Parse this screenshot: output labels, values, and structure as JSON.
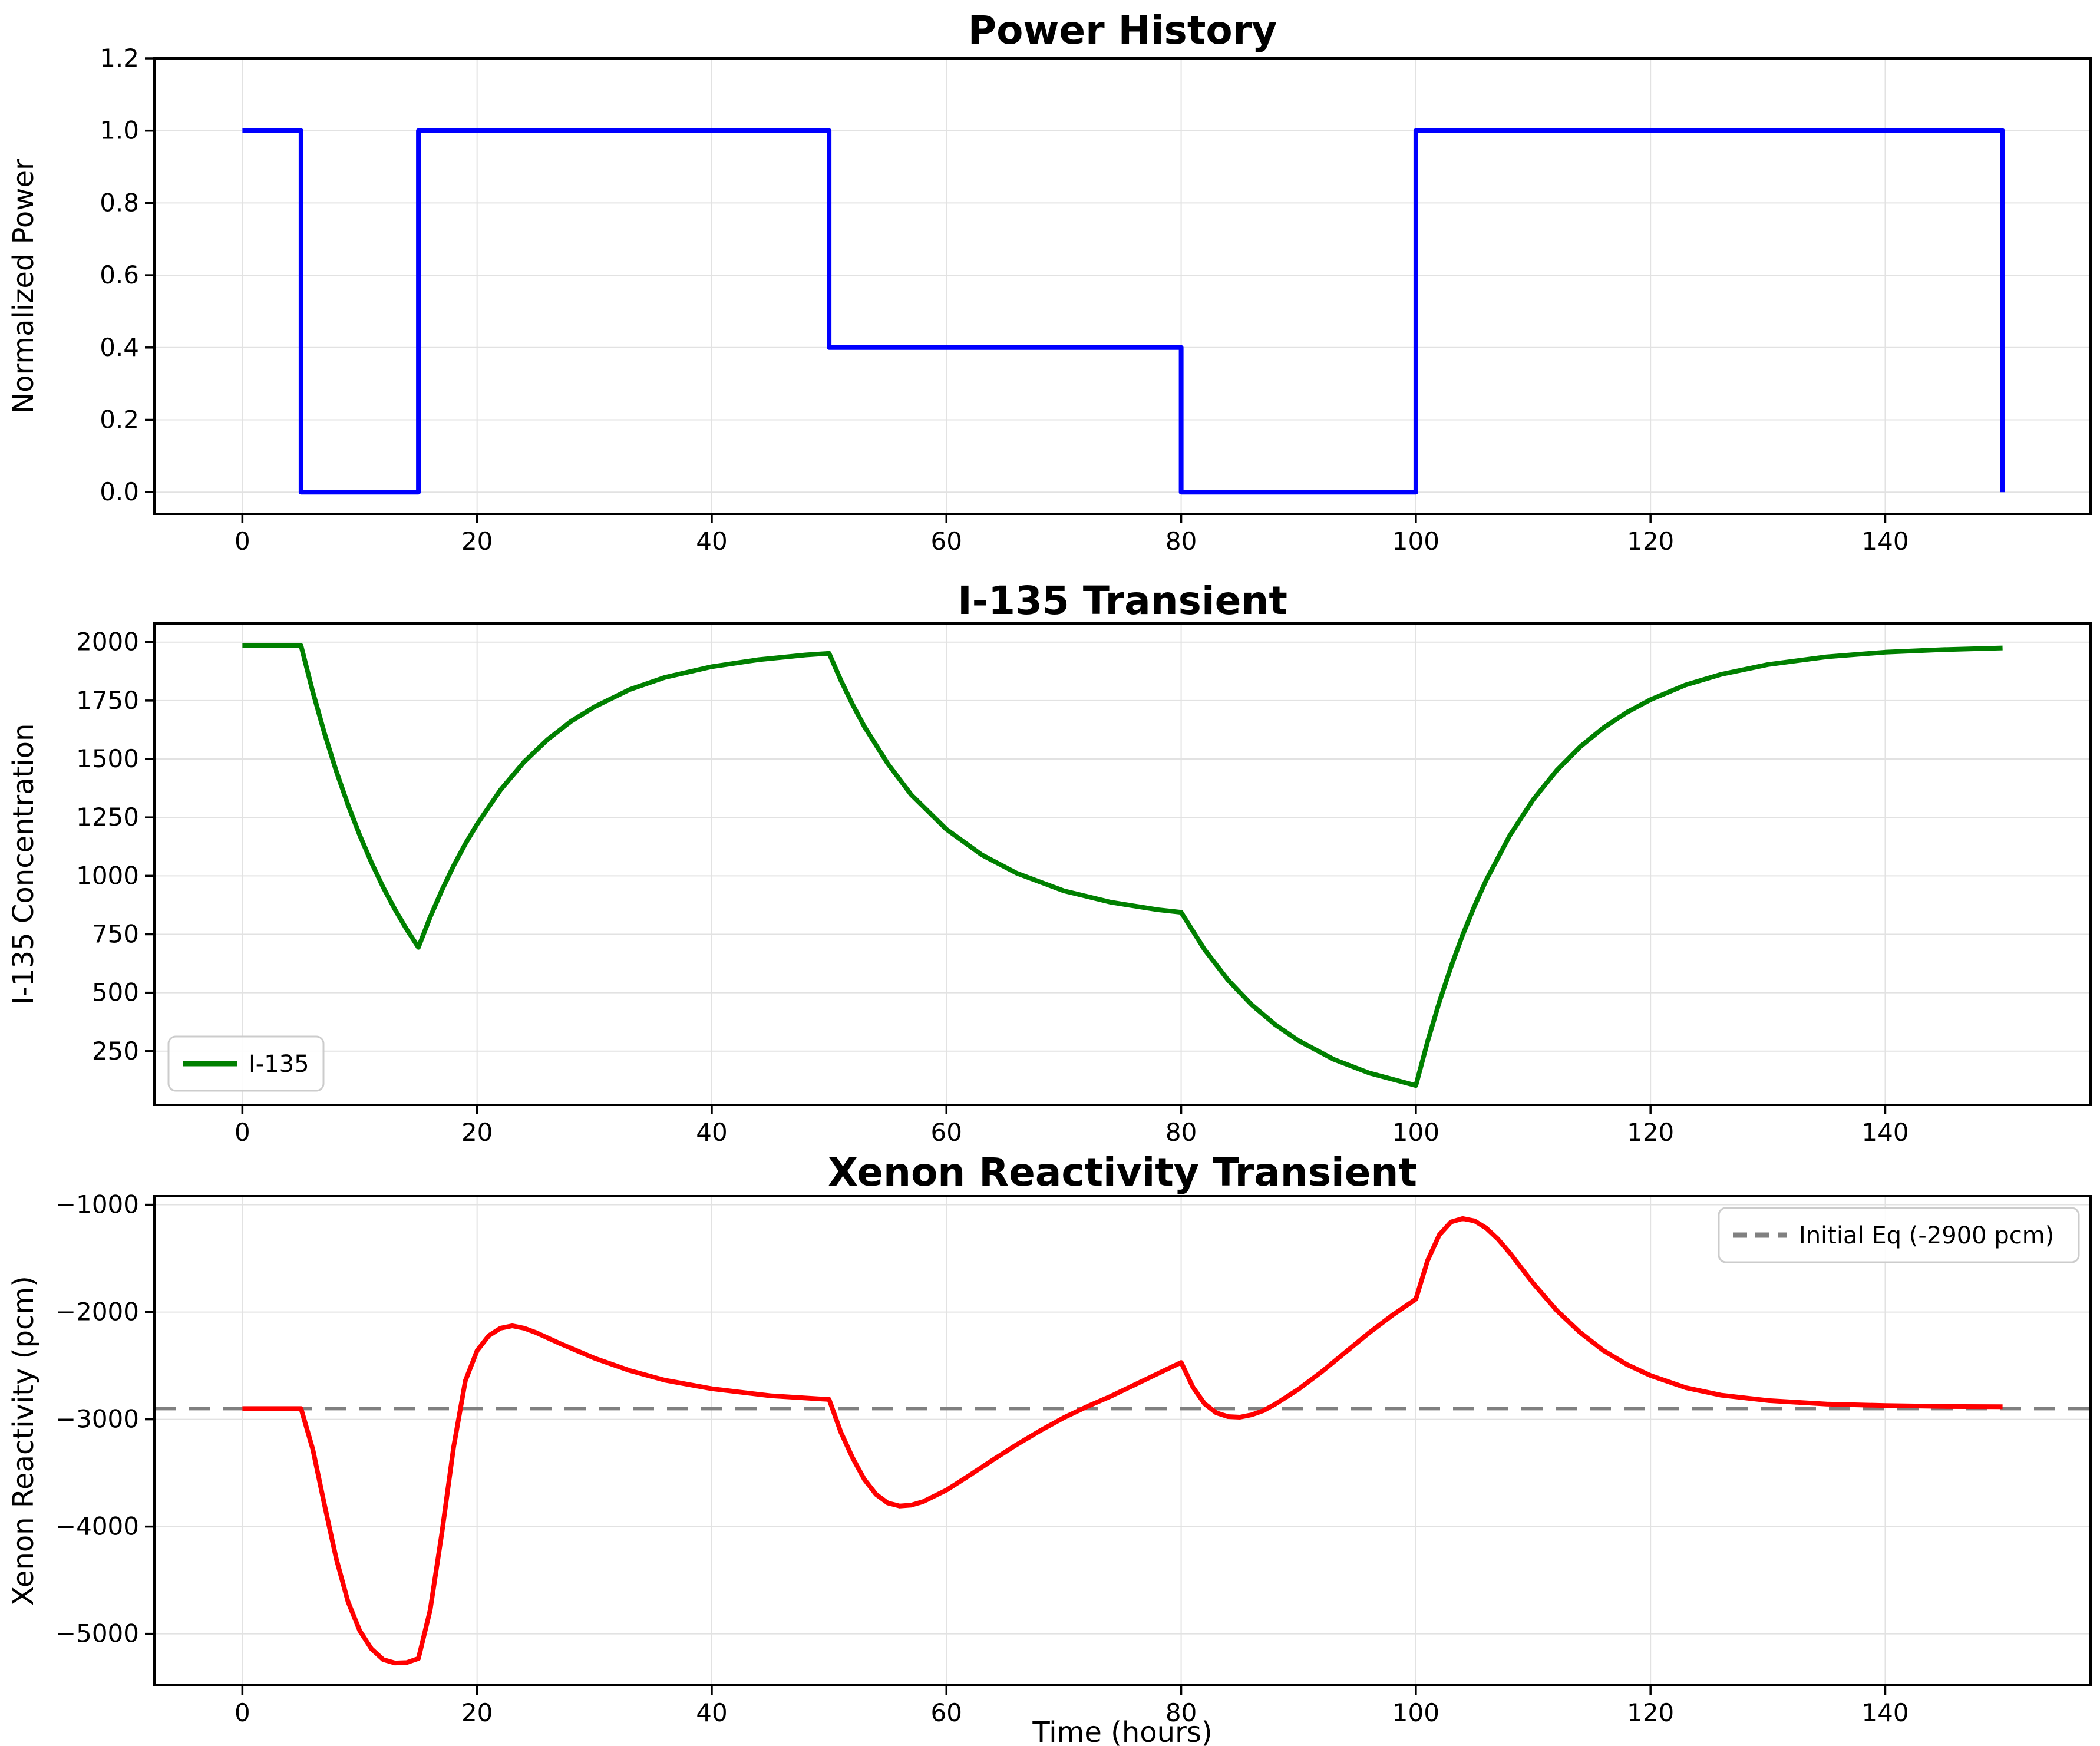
{
  "figure": {
    "background": "#ffffff",
    "xlabel": "Time (hours)"
  },
  "chart_data": [
    {
      "type": "line",
      "title": "Power History",
      "xlabel": "",
      "ylabel": "Normalized Power",
      "xlim": [
        -7.5,
        157.5
      ],
      "ylim": [
        -0.06,
        1.2
      ],
      "grid": true,
      "xticks": [
        0,
        20,
        40,
        60,
        80,
        100,
        120,
        140
      ],
      "xticklabels": [
        "0",
        "20",
        "40",
        "60",
        "80",
        "100",
        "120",
        "140"
      ],
      "yticks": [
        0.0,
        0.2,
        0.4,
        0.6,
        0.8,
        1.0,
        1.2
      ],
      "yticklabels": [
        "0.0",
        "0.2",
        "0.4",
        "0.6",
        "0.8",
        "1.0",
        "1.2"
      ],
      "legend": null,
      "series": [
        {
          "name": "power",
          "color": "#0000ff",
          "width": 8,
          "dash": null,
          "x": [
            0,
            5,
            5,
            15,
            15,
            50,
            50,
            80,
            80,
            100,
            100,
            150,
            150
          ],
          "y": [
            1,
            1,
            0,
            0,
            1,
            1,
            0.4,
            0.4,
            0,
            0,
            1,
            1,
            0
          ]
        }
      ]
    },
    {
      "type": "line",
      "title": "I-135 Transient",
      "xlabel": "",
      "ylabel": "I-135 Concentration",
      "xlim": [
        -7.5,
        157.5
      ],
      "ylim": [
        20,
        2080
      ],
      "grid": true,
      "xticks": [
        0,
        20,
        40,
        60,
        80,
        100,
        120,
        140
      ],
      "xticklabels": [
        "0",
        "20",
        "40",
        "60",
        "80",
        "100",
        "120",
        "140"
      ],
      "yticks": [
        250,
        500,
        750,
        1000,
        1250,
        1500,
        1750,
        2000
      ],
      "yticklabels": [
        "250",
        "500",
        "750",
        "1000",
        "1250",
        "1500",
        "1750",
        "2000"
      ],
      "legend": {
        "location": "lower left",
        "entries": [
          {
            "label": "I-135",
            "color": "#008000",
            "dash": null
          }
        ]
      },
      "series": [
        {
          "name": "I-135",
          "color": "#008000",
          "width": 8,
          "dash": null,
          "x": [
            0,
            5,
            6,
            7,
            8,
            9,
            10,
            11,
            12,
            13,
            14,
            15,
            16,
            17,
            18,
            19,
            20,
            22,
            24,
            26,
            28,
            30,
            33,
            36,
            40,
            44,
            48,
            50,
            51,
            52,
            53,
            55,
            57,
            60,
            63,
            66,
            70,
            74,
            78,
            80,
            82,
            84,
            86,
            88,
            90,
            93,
            96,
            100,
            101,
            102,
            103,
            104,
            105,
            106,
            108,
            110,
            112,
            114,
            116,
            118,
            120,
            123,
            126,
            130,
            135,
            140,
            145,
            150
          ],
          "y": [
            1985,
            1985,
            1787,
            1609,
            1448,
            1304,
            1174,
            1057,
            951,
            856,
            771,
            694,
            823,
            938,
            1043,
            1137,
            1221,
            1368,
            1487,
            1583,
            1661,
            1723,
            1797,
            1849,
            1895,
            1925,
            1945,
            1952,
            1837,
            1733,
            1639,
            1480,
            1347,
            1199,
            1090,
            1011,
            936,
            887,
            855,
            844,
            684,
            554,
            449,
            364,
            295,
            215,
            157,
            103,
            291,
            460,
            611,
            748,
            871,
            982,
            1172,
            1326,
            1451,
            1552,
            1634,
            1700,
            1754,
            1817,
            1862,
            1904,
            1937,
            1957,
            1968,
            1975
          ]
        }
      ]
    },
    {
      "type": "line",
      "title": "Xenon Reactivity Transient",
      "xlabel": "Time (hours)",
      "ylabel": "Xenon Reactivity (pcm)",
      "xlim": [
        -7.5,
        157.5
      ],
      "ylim": [
        -5480,
        -920
      ],
      "grid": true,
      "xticks": [
        0,
        20,
        40,
        60,
        80,
        100,
        120,
        140
      ],
      "xticklabels": [
        "0",
        "20",
        "40",
        "60",
        "80",
        "100",
        "120",
        "140"
      ],
      "yticks": [
        -5000,
        -4000,
        -3000,
        -2000,
        -1000
      ],
      "yticklabels": [
        "−5000",
        "−4000",
        "−3000",
        "−2000",
        "−1000"
      ],
      "equilibrium_pcm": -2900,
      "legend": {
        "location": "upper right",
        "entries": [
          {
            "label": "Initial Eq (-2900 pcm)",
            "color": "#808080",
            "dash": [
              24,
              14
            ]
          }
        ]
      },
      "series": [
        {
          "name": "initial-equilibrium",
          "color": "#808080",
          "width": 6,
          "dash": [
            36,
            22
          ],
          "x": [
            -7.5,
            157.5
          ],
          "y": [
            -2900,
            -2900
          ]
        },
        {
          "name": "xenon-reactivity",
          "color": "#ff0000",
          "width": 8,
          "dash": null,
          "x": [
            0,
            5,
            6,
            7,
            8,
            9,
            10,
            11,
            12,
            13,
            14,
            15,
            16,
            17,
            18,
            19,
            20,
            21,
            22,
            23,
            24,
            25,
            27,
            30,
            33,
            36,
            40,
            45,
            50,
            51,
            52,
            53,
            54,
            55,
            56,
            57,
            58,
            60,
            62,
            64,
            66,
            68,
            70,
            72,
            74,
            76,
            78,
            80,
            81,
            82,
            83,
            84,
            85,
            86,
            87,
            88,
            90,
            92,
            94,
            96,
            98,
            100,
            101,
            102,
            103,
            104,
            105,
            106,
            107,
            108,
            109,
            110,
            112,
            114,
            116,
            118,
            120,
            123,
            126,
            130,
            135,
            140,
            145,
            150
          ],
          "y": [
            -2900,
            -2900,
            -3280,
            -3800,
            -4300,
            -4700,
            -4970,
            -5140,
            -5240,
            -5272,
            -5268,
            -5230,
            -4780,
            -4060,
            -3260,
            -2640,
            -2360,
            -2220,
            -2150,
            -2128,
            -2150,
            -2190,
            -2290,
            -2430,
            -2545,
            -2635,
            -2715,
            -2780,
            -2815,
            -3120,
            -3360,
            -3560,
            -3700,
            -3780,
            -3808,
            -3800,
            -3768,
            -3660,
            -3520,
            -3375,
            -3235,
            -3105,
            -2985,
            -2880,
            -2785,
            -2680,
            -2575,
            -2470,
            -2700,
            -2855,
            -2940,
            -2975,
            -2980,
            -2958,
            -2920,
            -2860,
            -2720,
            -2555,
            -2375,
            -2195,
            -2030,
            -1880,
            -1520,
            -1280,
            -1160,
            -1128,
            -1150,
            -1218,
            -1320,
            -1448,
            -1590,
            -1732,
            -1985,
            -2190,
            -2360,
            -2490,
            -2592,
            -2705,
            -2775,
            -2825,
            -2858,
            -2872,
            -2880,
            -2883
          ]
        }
      ]
    }
  ],
  "colors": {
    "power_line": "#0000ff",
    "iodine_line": "#008000",
    "xenon_line": "#ff0000",
    "equilibrium_dash": "#808080",
    "grid": "#e2e2e2",
    "spine": "#000000"
  }
}
